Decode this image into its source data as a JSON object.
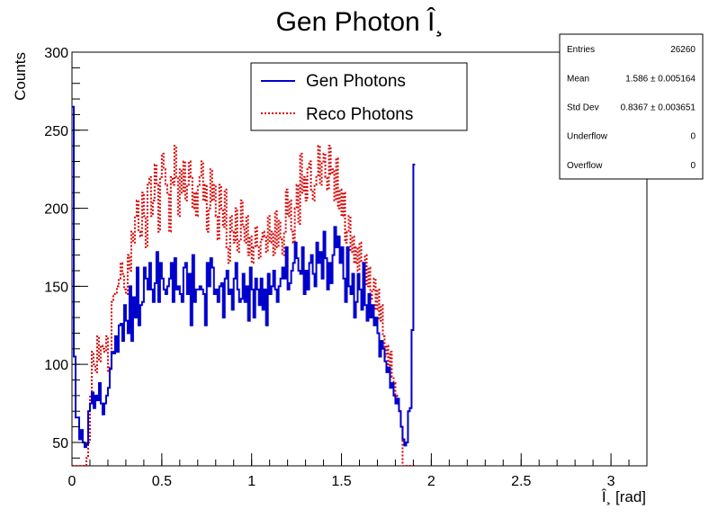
{
  "chart_data": {
    "type": "histogram",
    "title": "Gen Photon Î¸",
    "xlabel": "Î¸ [rad]",
    "ylabel": "Counts",
    "xlim": [
      0,
      3.2
    ],
    "ylim": [
      35,
      300
    ],
    "xticks": [
      0,
      0.5,
      1,
      1.5,
      2,
      2.5,
      3
    ],
    "yticks": [
      50,
      100,
      150,
      200,
      250,
      300
    ],
    "grid": false,
    "legend_position": "top-center",
    "stats_box_position": "top-right",
    "bin_width": 0.01,
    "series": [
      {
        "name": "Gen Photons",
        "color": "#0000cc",
        "style": "solid",
        "values": [
          265,
          105,
          66,
          66,
          52,
          58,
          50,
          47,
          49,
          70,
          75,
          82,
          72,
          80,
          77,
          88,
          75,
          68,
          75,
          80,
          85,
          97,
          108,
          107,
          118,
          108,
          125,
          126,
          115,
          138,
          128,
          120,
          150,
          115,
          143,
          130,
          162,
          125,
          138,
          140,
          162,
          155,
          148,
          165,
          148,
          140,
          152,
          172,
          140,
          165,
          155,
          148,
          145,
          150,
          155,
          165,
          140,
          168,
          148,
          150,
          145,
          140,
          162,
          165,
          145,
          158,
          125,
          170,
          140,
          148,
          148,
          150,
          148,
          145,
          125,
          165,
          150,
          168,
          162,
          145,
          148,
          140,
          150,
          152,
          130,
          155,
          160,
          145,
          148,
          135,
          155,
          165,
          148,
          140,
          142,
          158,
          140,
          150,
          128,
          162,
          148,
          130,
          155,
          148,
          138,
          155,
          135,
          148,
          125,
          158,
          145,
          150,
          160,
          148,
          140,
          150,
          155,
          162,
          155,
          175,
          148,
          152,
          160,
          165,
          178,
          168,
          160,
          158,
          175,
          145,
          160,
          148,
          165,
          170,
          158,
          150,
          178,
          165,
          172,
          155,
          185,
          168,
          148,
          165,
          152,
          170,
          188,
          175,
          182,
          165,
          175,
          155,
          140,
          175,
          150,
          145,
          158,
          130,
          140,
          158,
          148,
          135,
          165,
          138,
          128,
          145,
          130,
          138,
          125,
          130,
          120,
          105,
          115,
          110,
          102,
          95,
          98,
          85,
          88,
          80,
          75,
          78,
          70,
          60,
          52,
          48,
          50,
          70,
          72,
          122,
          228
        ]
      },
      {
        "name": "Reco Photons",
        "color": "#dd0000",
        "style": "dotted",
        "values": [
          32,
          32,
          32,
          32,
          32,
          32,
          32,
          32,
          40,
          50,
          80,
          108,
          100,
          95,
          118,
          102,
          112,
          110,
          108,
          118,
          95,
          98,
          140,
          145,
          145,
          150,
          155,
          165,
          158,
          148,
          145,
          170,
          160,
          185,
          178,
          195,
          205,
          185,
          182,
          210,
          195,
          175,
          215,
          220,
          195,
          205,
          228,
          215,
          185,
          220,
          235,
          225,
          215,
          210,
          185,
          220,
          215,
          240,
          220,
          195,
          225,
          210,
          230,
          205,
          215,
          230,
          220,
          200,
          210,
          195,
          215,
          220,
          230,
          205,
          215,
          185,
          200,
          225,
          205,
          215,
          195,
          180,
          215,
          200,
          188,
          212,
          175,
          165,
          195,
          185,
          178,
          200,
          172,
          180,
          205,
          188,
          178,
          195,
          170,
          182,
          165,
          175,
          188,
          175,
          168,
          180,
          185,
          182,
          172,
          195,
          178,
          185,
          170,
          198,
          175,
          192,
          180,
          170,
          185,
          212,
          195,
          205,
          185,
          178,
          200,
          215,
          190,
          235,
          210,
          220,
          205,
          225,
          230,
          212,
          205,
          215,
          220,
          240,
          215,
          230,
          235,
          220,
          212,
          240,
          222,
          225,
          205,
          232,
          200,
          212,
          195,
          210,
          178,
          185,
          195,
          172,
          182,
          165,
          175,
          160,
          178,
          165,
          155,
          170,
          150,
          162,
          142,
          148,
          155,
          135,
          148,
          128,
          138,
          118,
          105,
          112,
          98,
          108,
          92,
          88,
          80,
          75,
          70,
          60,
          32,
          32,
          32,
          32,
          32,
          32,
          32
        ]
      }
    ],
    "stats": [
      {
        "label": "Entries",
        "value": "26260"
      },
      {
        "label": "Mean",
        "value": "1.586 ± 0.005164"
      },
      {
        "label": "Std Dev",
        "value": "0.8367 ± 0.003651"
      },
      {
        "label": "Underflow",
        "value": "0"
      },
      {
        "label": "Overflow",
        "value": "0"
      }
    ]
  }
}
